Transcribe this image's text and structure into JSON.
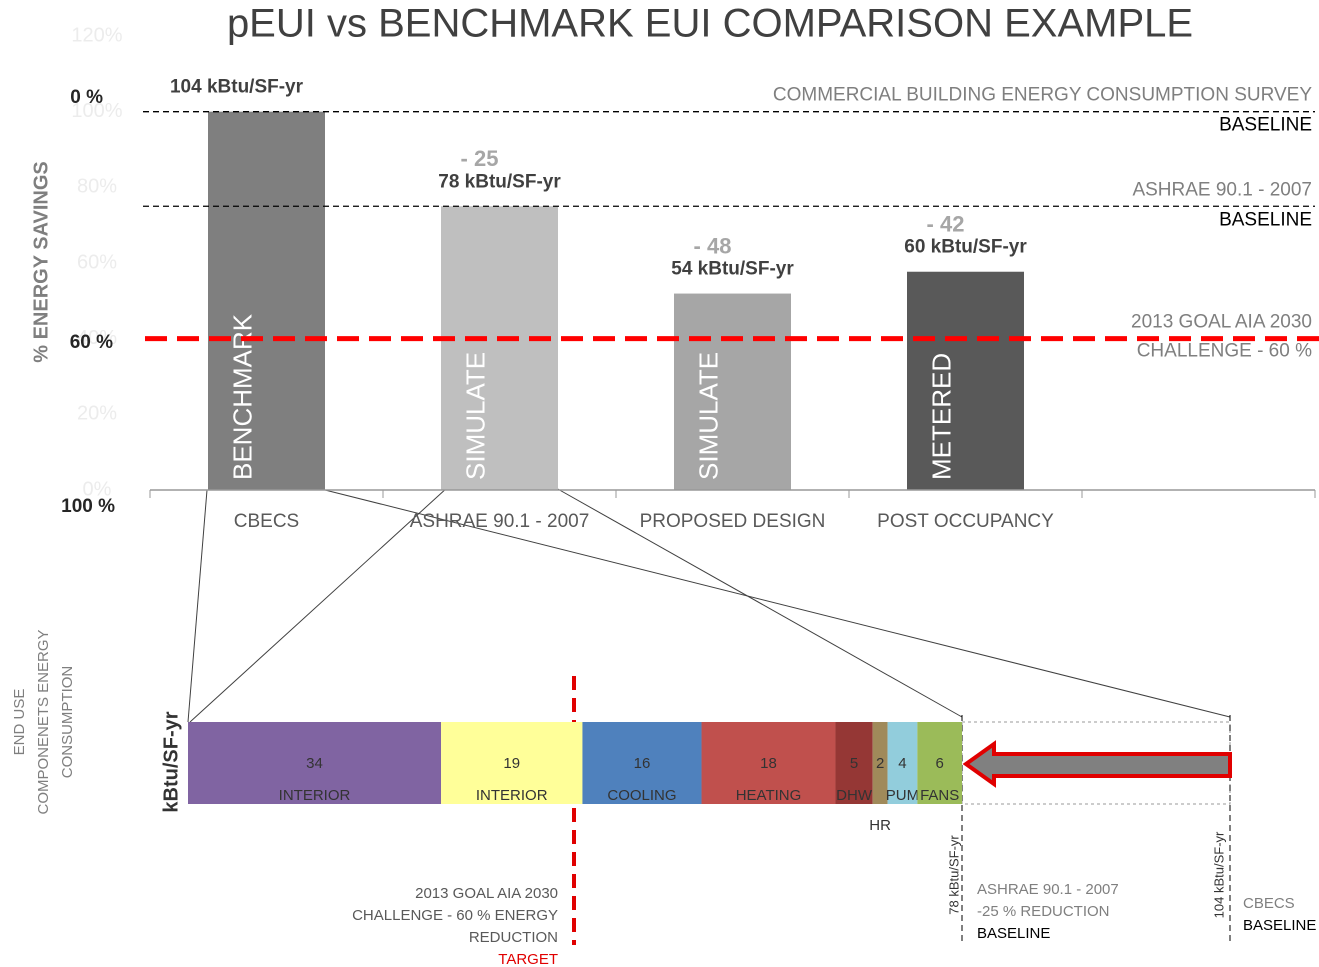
{
  "chart_data": [
    {
      "type": "bar",
      "title": "pEUI vs BENCHMARK EUI COMPARISON EXAMPLE",
      "y_axis_label": "% ENERGY SAVINGS",
      "categories": [
        "CBECS",
        "ASHRAE 90.1 - 2007",
        "PROPOSED DESIGN",
        "POST OCCUPANCY"
      ],
      "values": [
        104,
        78,
        54,
        60
      ],
      "value_labels": [
        "104 kBtu/SF-yr",
        "78 kBtu/SF-yr",
        "54 kBtu/SF-yr",
        "60 kBtu/SF-yr"
      ],
      "colors": [
        "#7f7f7f",
        "#bfbfbf",
        "#a6a6a6",
        "#595959"
      ],
      "bar_labels": [
        "BENCHMARK",
        "SIMULATE",
        "SIMULATE",
        "METERED"
      ],
      "savings_labels": [
        null,
        "- 25",
        "- 48",
        "- 42"
      ],
      "ylim": [
        0,
        124.8
      ],
      "y2lim": [
        0,
        120
      ],
      "y2ticks": [
        {
          "value": 0,
          "label": "0%"
        },
        {
          "value": 20,
          "label": "20%"
        },
        {
          "value": 40,
          "label": "40%"
        },
        {
          "value": 60,
          "label": "60%"
        },
        {
          "value": 80,
          "label": "80%"
        },
        {
          "value": 100,
          "label": "100%"
        },
        {
          "value": 120,
          "label": "120%"
        }
      ],
      "savings_ticks": [
        "0 %",
        "60 %",
        "100 %"
      ],
      "reference_lines": [
        {
          "value": 104,
          "labels": [
            "COMMERCIAL BUILDING ENERGY CONSUMPTION SURVEY",
            "BASELINE"
          ],
          "color": "#000000"
        },
        {
          "value": 78,
          "labels": [
            "ASHRAE 90.1 - 2007",
            "BASELINE"
          ],
          "color": "#000000"
        },
        {
          "value": 41.6,
          "labels": [
            "2013 GOAL AIA 2030",
            "CHALLENGE - 60 %"
          ],
          "color": "#ff0000"
        }
      ]
    },
    {
      "type": "stacked_bar",
      "y_axis_label": "kBtu/SF-yr",
      "side_label": [
        "END USE",
        "COMPONENETS ENERGY",
        "CONSUMPTION"
      ],
      "categories": [
        "INTERIOR",
        "INTERIOR",
        "COOLING",
        "HEATING",
        "DHW",
        "HR",
        "PUM",
        "FANS"
      ],
      "values": [
        34,
        19,
        16,
        18,
        5,
        2,
        4,
        6
      ],
      "colors": [
        "#8064a2",
        "#ffff99",
        "#4f81bd",
        "#c0504d",
        "#953735",
        "#a08a5a",
        "#92cddc",
        "#9bbb59"
      ],
      "xlim": [
        0,
        104
      ],
      "target_label": [
        "2013 GOAL AIA 2030",
        "CHALLENGE - 60 % ENERGY",
        "REDUCTION",
        "TARGET"
      ],
      "markers": [
        {
          "label": "78 kBtu/SF-yr",
          "notes": [
            "ASHRAE 90.1 - 2007",
            "-25 % REDUCTION",
            "BASELINE"
          ]
        },
        {
          "label": "104 kBtu/SF-yr",
          "notes": [
            "CBECS",
            "BASELINE"
          ]
        }
      ]
    }
  ]
}
